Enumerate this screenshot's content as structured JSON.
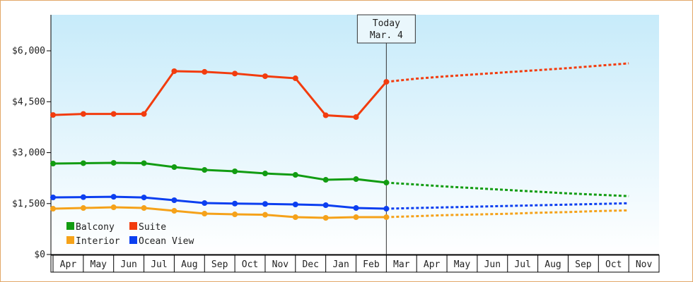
{
  "chart_data": {
    "type": "line",
    "categories": [
      "Apr",
      "May",
      "Jun",
      "Jul",
      "Aug",
      "Sep",
      "Oct",
      "Nov",
      "Dec",
      "Jan",
      "Feb",
      "Mar",
      "Apr",
      "May",
      "Jun",
      "Jul",
      "Aug",
      "Sep",
      "Oct",
      "Nov"
    ],
    "series": [
      {
        "name": "Balcony",
        "color": "#129c12",
        "values": [
          2678,
          2690,
          2700,
          2690,
          2574,
          2491,
          2450,
          2387,
          2346,
          2200,
          2221,
          2117,
          2060,
          2000,
          1950,
          1900,
          1850,
          1800,
          1760,
          1720
        ]
      },
      {
        "name": "Suite",
        "color": "#f23c0e",
        "values": [
          4110,
          4140,
          4140,
          4140,
          5400,
          5380,
          5330,
          5252,
          5190,
          4100,
          4048,
          5086,
          5180,
          5250,
          5310,
          5370,
          5430,
          5490,
          5560,
          5630
        ]
      },
      {
        "name": "Interior",
        "color": "#f5a21a",
        "values": [
          1349,
          1370,
          1390,
          1370,
          1287,
          1204,
          1183,
          1170,
          1100,
          1080,
          1100,
          1100,
          1130,
          1160,
          1180,
          1200,
          1230,
          1250,
          1280,
          1300
        ]
      },
      {
        "name": "Ocean View",
        "color": "#0c3ff0",
        "values": [
          1682,
          1690,
          1700,
          1680,
          1599,
          1515,
          1500,
          1490,
          1474,
          1453,
          1370,
          1349,
          1370,
          1390,
          1410,
          1430,
          1450,
          1470,
          1490,
          1510
        ]
      }
    ],
    "ylim": [
      0,
      7060
    ],
    "yticks": [
      {
        "value": 0,
        "label": "$0"
      },
      {
        "value": 1500,
        "label": "$1,500"
      },
      {
        "value": 3000,
        "label": "$3,000"
      },
      {
        "value": 4500,
        "label": "$4,500"
      },
      {
        "value": 6000,
        "label": "$6,000"
      }
    ],
    "annotation": {
      "lines": [
        "Today",
        "Mar. 4"
      ],
      "category": "Mar"
    },
    "legend": "lower left"
  }
}
